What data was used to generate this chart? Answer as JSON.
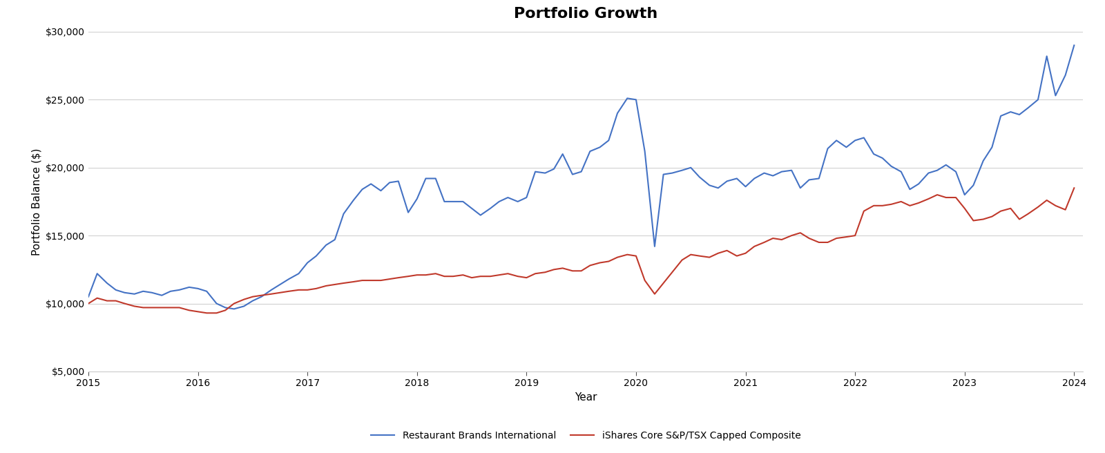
{
  "title": "Portfolio Growth",
  "xlabel": "Year",
  "ylabel": "Portfolio Balance ($)",
  "background_color": "#ffffff",
  "grid_color": "#d0d0d0",
  "line1_color": "#4472C4",
  "line2_color": "#C0392B",
  "line1_label": "Restaurant Brands International",
  "line2_label": "iShares Core S&P/TSX Capped Composite",
  "ylim": [
    5000,
    30000
  ],
  "yticks": [
    5000,
    10000,
    15000,
    20000,
    25000,
    30000
  ],
  "xlim_start": 2015.0,
  "xlim_end": 2024.08,
  "xticks": [
    2015,
    2016,
    2017,
    2018,
    2019,
    2020,
    2021,
    2022,
    2023,
    2024
  ],
  "line1_x": [
    2015.0,
    2015.08,
    2015.17,
    2015.25,
    2015.33,
    2015.42,
    2015.5,
    2015.58,
    2015.67,
    2015.75,
    2015.83,
    2015.92,
    2016.0,
    2016.08,
    2016.17,
    2016.25,
    2016.33,
    2016.42,
    2016.5,
    2016.58,
    2016.67,
    2016.75,
    2016.83,
    2016.92,
    2017.0,
    2017.08,
    2017.17,
    2017.25,
    2017.33,
    2017.42,
    2017.5,
    2017.58,
    2017.67,
    2017.75,
    2017.83,
    2017.92,
    2018.0,
    2018.08,
    2018.17,
    2018.25,
    2018.33,
    2018.42,
    2018.5,
    2018.58,
    2018.67,
    2018.75,
    2018.83,
    2018.92,
    2019.0,
    2019.08,
    2019.17,
    2019.25,
    2019.33,
    2019.42,
    2019.5,
    2019.58,
    2019.67,
    2019.75,
    2019.83,
    2019.92,
    2020.0,
    2020.08,
    2020.17,
    2020.25,
    2020.33,
    2020.42,
    2020.5,
    2020.58,
    2020.67,
    2020.75,
    2020.83,
    2020.92,
    2021.0,
    2021.08,
    2021.17,
    2021.25,
    2021.33,
    2021.42,
    2021.5,
    2021.58,
    2021.67,
    2021.75,
    2021.83,
    2021.92,
    2022.0,
    2022.08,
    2022.17,
    2022.25,
    2022.33,
    2022.42,
    2022.5,
    2022.58,
    2022.67,
    2022.75,
    2022.83,
    2022.92,
    2023.0,
    2023.08,
    2023.17,
    2023.25,
    2023.33,
    2023.42,
    2023.5,
    2023.58,
    2023.67,
    2023.75,
    2023.83,
    2023.92,
    2024.0
  ],
  "line1_y": [
    10500,
    12200,
    11500,
    11000,
    10800,
    10700,
    10900,
    10800,
    10600,
    10900,
    11000,
    11200,
    11100,
    10900,
    10000,
    9700,
    9600,
    9800,
    10200,
    10500,
    11000,
    11400,
    11800,
    12200,
    13000,
    13500,
    14300,
    14700,
    16600,
    17600,
    18400,
    18800,
    18300,
    18900,
    19000,
    16700,
    17700,
    19200,
    19200,
    17500,
    17500,
    17500,
    17000,
    16500,
    17000,
    17500,
    17800,
    17500,
    17800,
    19700,
    19600,
    19900,
    21000,
    19500,
    19700,
    21200,
    21500,
    22000,
    24000,
    25100,
    25000,
    21200,
    14200,
    19500,
    19600,
    19800,
    20000,
    19300,
    18700,
    18500,
    19000,
    19200,
    18600,
    19200,
    19600,
    19400,
    19700,
    19800,
    18500,
    19100,
    19200,
    21400,
    22000,
    21500,
    22000,
    22200,
    21000,
    20700,
    20100,
    19700,
    18400,
    18800,
    19600,
    19800,
    20200,
    19700,
    18000,
    18700,
    20500,
    21500,
    23800,
    24100,
    23900,
    24400,
    25000,
    28200,
    25300,
    26800,
    29000
  ],
  "line2_x": [
    2015.0,
    2015.08,
    2015.17,
    2015.25,
    2015.33,
    2015.42,
    2015.5,
    2015.58,
    2015.67,
    2015.75,
    2015.83,
    2015.92,
    2016.0,
    2016.08,
    2016.17,
    2016.25,
    2016.33,
    2016.42,
    2016.5,
    2016.58,
    2016.67,
    2016.75,
    2016.83,
    2016.92,
    2017.0,
    2017.08,
    2017.17,
    2017.25,
    2017.33,
    2017.42,
    2017.5,
    2017.58,
    2017.67,
    2017.75,
    2017.83,
    2017.92,
    2018.0,
    2018.08,
    2018.17,
    2018.25,
    2018.33,
    2018.42,
    2018.5,
    2018.58,
    2018.67,
    2018.75,
    2018.83,
    2018.92,
    2019.0,
    2019.08,
    2019.17,
    2019.25,
    2019.33,
    2019.42,
    2019.5,
    2019.58,
    2019.67,
    2019.75,
    2019.83,
    2019.92,
    2020.0,
    2020.08,
    2020.17,
    2020.25,
    2020.33,
    2020.42,
    2020.5,
    2020.58,
    2020.67,
    2020.75,
    2020.83,
    2020.92,
    2021.0,
    2021.08,
    2021.17,
    2021.25,
    2021.33,
    2021.42,
    2021.5,
    2021.58,
    2021.67,
    2021.75,
    2021.83,
    2021.92,
    2022.0,
    2022.08,
    2022.17,
    2022.25,
    2022.33,
    2022.42,
    2022.5,
    2022.58,
    2022.67,
    2022.75,
    2022.83,
    2022.92,
    2023.0,
    2023.08,
    2023.17,
    2023.25,
    2023.33,
    2023.42,
    2023.5,
    2023.58,
    2023.67,
    2023.75,
    2023.83,
    2023.92,
    2024.0
  ],
  "line2_y": [
    10000,
    10400,
    10200,
    10200,
    10000,
    9800,
    9700,
    9700,
    9700,
    9700,
    9700,
    9500,
    9400,
    9300,
    9300,
    9500,
    10000,
    10300,
    10500,
    10600,
    10700,
    10800,
    10900,
    11000,
    11000,
    11100,
    11300,
    11400,
    11500,
    11600,
    11700,
    11700,
    11700,
    11800,
    11900,
    12000,
    12100,
    12100,
    12200,
    12000,
    12000,
    12100,
    11900,
    12000,
    12000,
    12100,
    12200,
    12000,
    11900,
    12200,
    12300,
    12500,
    12600,
    12400,
    12400,
    12800,
    13000,
    13100,
    13400,
    13600,
    13500,
    11700,
    10700,
    11500,
    12300,
    13200,
    13600,
    13500,
    13400,
    13700,
    13900,
    13500,
    13700,
    14200,
    14500,
    14800,
    14700,
    15000,
    15200,
    14800,
    14500,
    14500,
    14800,
    14900,
    15000,
    16800,
    17200,
    17200,
    17300,
    17500,
    17200,
    17400,
    17700,
    18000,
    17800,
    17800,
    17000,
    16100,
    16200,
    16400,
    16800,
    17000,
    16200,
    16600,
    17100,
    17600,
    17200,
    16900,
    18500
  ],
  "linewidth": 1.5,
  "title_fontsize": 16,
  "label_fontsize": 11,
  "tick_fontsize": 10,
  "legend_fontsize": 10,
  "tick_color": "#555555",
  "spine_color": "#cccccc"
}
